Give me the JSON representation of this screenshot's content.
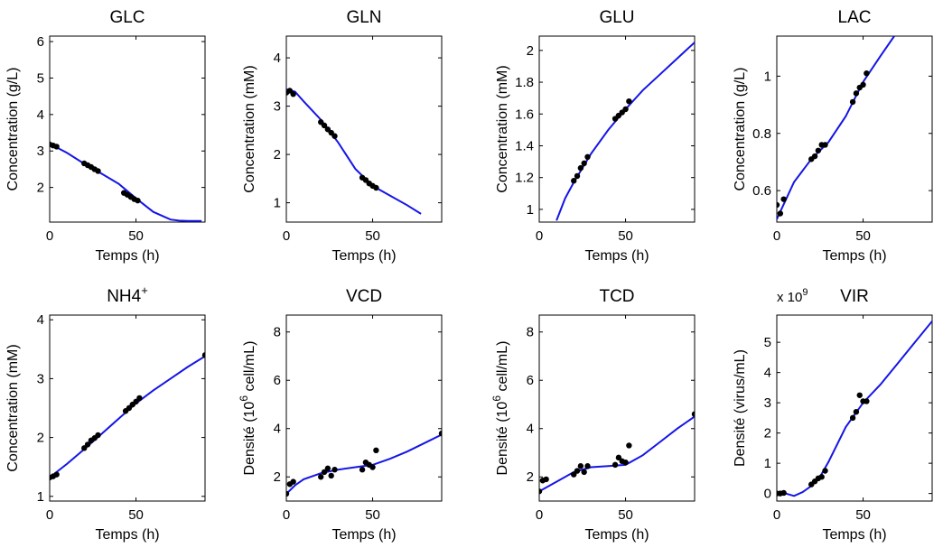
{
  "chart_data": [
    {
      "type": "scatter",
      "title": "GLC",
      "xlabel": "Temps (h)",
      "ylabel": "Concentration (g/L)",
      "xlim": [
        0,
        90
      ],
      "ylim": [
        1.05,
        6.15
      ],
      "xticks": [
        0,
        50
      ],
      "yticks": [
        2,
        3,
        4,
        5,
        6
      ],
      "series": [
        {
          "kind": "points",
          "x": [
            0,
            2,
            4,
            20,
            22,
            24,
            26,
            28,
            43,
            45,
            47,
            49,
            51
          ],
          "y": [
            3.18,
            3.15,
            3.12,
            2.66,
            2.61,
            2.56,
            2.5,
            2.45,
            1.85,
            1.8,
            1.74,
            1.68,
            1.64
          ]
        },
        {
          "kind": "fit",
          "x": [
            0,
            10,
            20,
            30,
            40,
            50,
            60,
            70,
            75,
            80,
            88
          ],
          "y": [
            3.2,
            2.95,
            2.65,
            2.38,
            2.1,
            1.7,
            1.33,
            1.12,
            1.09,
            1.08,
            1.08
          ]
        }
      ]
    },
    {
      "type": "scatter",
      "title": "GLN",
      "xlabel": "Temps (h)",
      "ylabel": "Concentration (mM)",
      "xlim": [
        0,
        90
      ],
      "ylim": [
        0.6,
        4.45
      ],
      "xticks": [
        0,
        50
      ],
      "yticks": [
        1,
        2,
        3,
        4
      ],
      "series": [
        {
          "kind": "points",
          "x": [
            0,
            2,
            4,
            20,
            22,
            24,
            26,
            28,
            44,
            46,
            48,
            50,
            52
          ],
          "y": [
            3.28,
            3.32,
            3.25,
            2.67,
            2.6,
            2.52,
            2.45,
            2.38,
            1.52,
            1.47,
            1.4,
            1.35,
            1.31
          ]
        },
        {
          "kind": "fit",
          "x": [
            0,
            5,
            10,
            20,
            30,
            40,
            50,
            60,
            70,
            78
          ],
          "y": [
            3.35,
            3.3,
            3.1,
            2.72,
            2.25,
            1.7,
            1.35,
            1.15,
            0.95,
            0.77
          ]
        }
      ]
    },
    {
      "type": "scatter",
      "title": "GLU",
      "xlabel": "Temps (h)",
      "ylabel": "Concentration (mM)",
      "xlim": [
        0,
        90
      ],
      "ylim": [
        0.92,
        2.09
      ],
      "xticks": [
        0,
        50
      ],
      "yticks": [
        1,
        1.2,
        1.4,
        1.6,
        1.8,
        2
      ],
      "series": [
        {
          "kind": "points",
          "x": [
            20,
            22,
            24,
            26,
            28,
            44,
            46,
            48,
            50,
            52
          ],
          "y": [
            1.18,
            1.21,
            1.26,
            1.29,
            1.33,
            1.57,
            1.59,
            1.61,
            1.63,
            1.68
          ]
        },
        {
          "kind": "fit",
          "x": [
            10,
            15,
            20,
            30,
            40,
            50,
            60,
            70,
            80,
            90
          ],
          "y": [
            0.93,
            1.07,
            1.17,
            1.35,
            1.5,
            1.63,
            1.75,
            1.85,
            1.95,
            2.05
          ]
        }
      ]
    },
    {
      "type": "scatter",
      "title": "LAC",
      "xlabel": "Temps (h)",
      "ylabel": "Concentration (g/L)",
      "xlim": [
        0,
        90
      ],
      "ylim": [
        0.49,
        1.14
      ],
      "xticks": [
        0,
        50
      ],
      "yticks": [
        0.6,
        0.8,
        1
      ],
      "series": [
        {
          "kind": "points",
          "x": [
            0,
            2,
            4,
            20,
            22,
            24,
            26,
            28,
            44,
            46,
            48,
            50,
            52
          ],
          "y": [
            0.55,
            0.52,
            0.57,
            0.71,
            0.72,
            0.74,
            0.76,
            0.76,
            0.91,
            0.94,
            0.96,
            0.97,
            1.01
          ]
        },
        {
          "kind": "fit",
          "x": [
            0,
            10,
            20,
            30,
            40,
            50,
            60,
            68
          ],
          "y": [
            0.5,
            0.63,
            0.71,
            0.77,
            0.86,
            0.98,
            1.07,
            1.14
          ]
        }
      ]
    },
    {
      "type": "scatter",
      "title": "NH4",
      "title_sup": "+",
      "xlabel": "Temps (h)",
      "ylabel": "Concentration (mM)",
      "xlim": [
        0,
        90
      ],
      "ylim": [
        0.92,
        4.08
      ],
      "xticks": [
        0,
        50
      ],
      "yticks": [
        1,
        2,
        3,
        4
      ],
      "series": [
        {
          "kind": "points",
          "x": [
            0,
            2,
            4,
            20,
            22,
            24,
            26,
            28,
            44,
            46,
            48,
            50,
            52,
            90
          ],
          "y": [
            1.32,
            1.34,
            1.37,
            1.82,
            1.88,
            1.95,
            1.99,
            2.04,
            2.45,
            2.5,
            2.56,
            2.61,
            2.67,
            3.4
          ]
        },
        {
          "kind": "fit",
          "x": [
            0,
            10,
            20,
            30,
            40,
            50,
            60,
            70,
            80,
            90
          ],
          "y": [
            1.32,
            1.55,
            1.8,
            2.06,
            2.32,
            2.58,
            2.8,
            3.0,
            3.2,
            3.38
          ]
        }
      ]
    },
    {
      "type": "scatter",
      "title": "VCD",
      "xlabel": "Temps (h)",
      "ylabel": "Densité (10",
      "ylabel_sup": "6",
      "ylabel_tail": " cell/mL)",
      "xlim": [
        0,
        90
      ],
      "ylim": [
        1,
        8.7
      ],
      "xticks": [
        0,
        50
      ],
      "yticks": [
        2,
        4,
        6,
        8
      ],
      "series": [
        {
          "kind": "points",
          "x": [
            0,
            2,
            4,
            20,
            22,
            24,
            26,
            28,
            44,
            46,
            48,
            50,
            52,
            90
          ],
          "y": [
            1.3,
            1.7,
            1.8,
            2.0,
            2.2,
            2.35,
            2.05,
            2.3,
            2.3,
            2.6,
            2.5,
            2.4,
            3.1,
            3.8
          ]
        },
        {
          "kind": "fit",
          "x": [
            0,
            5,
            10,
            20,
            30,
            40,
            50,
            60,
            70,
            80,
            90
          ],
          "y": [
            1.3,
            1.65,
            1.9,
            2.15,
            2.3,
            2.4,
            2.5,
            2.75,
            3.05,
            3.4,
            3.75
          ]
        }
      ]
    },
    {
      "type": "scatter",
      "title": "TCD",
      "xlabel": "Temps (h)",
      "ylabel": "Densité (10",
      "ylabel_sup": "6",
      "ylabel_tail": " cell/mL)",
      "xlim": [
        0,
        90
      ],
      "ylim": [
        1,
        8.7
      ],
      "xticks": [
        0,
        50
      ],
      "yticks": [
        2,
        4,
        6,
        8
      ],
      "series": [
        {
          "kind": "points",
          "x": [
            0,
            2,
            4,
            20,
            22,
            24,
            26,
            28,
            44,
            46,
            48,
            50,
            52,
            90
          ],
          "y": [
            1.4,
            1.85,
            1.9,
            2.1,
            2.25,
            2.45,
            2.2,
            2.45,
            2.5,
            2.8,
            2.65,
            2.6,
            3.3,
            4.6
          ]
        },
        {
          "kind": "fit",
          "x": [
            0,
            10,
            20,
            30,
            40,
            50,
            60,
            70,
            80,
            90
          ],
          "y": [
            1.4,
            1.8,
            2.2,
            2.4,
            2.45,
            2.5,
            2.9,
            3.45,
            4.0,
            4.5
          ]
        }
      ]
    },
    {
      "type": "scatter",
      "title": "VIR",
      "scale_label": "x 10",
      "scale_sup": "9",
      "xlabel": "Temps (h)",
      "ylabel": "Densité (virus/mL)",
      "xlim": [
        0,
        90
      ],
      "ylim": [
        -0.25,
        5.9
      ],
      "xticks": [
        0,
        50
      ],
      "yticks": [
        0,
        1,
        2,
        3,
        4,
        5
      ],
      "series": [
        {
          "kind": "points",
          "x": [
            0,
            2,
            4,
            20,
            22,
            24,
            26,
            28,
            44,
            46,
            48,
            50,
            52
          ],
          "y": [
            0,
            0,
            0.02,
            0.3,
            0.4,
            0.5,
            0.55,
            0.75,
            2.5,
            2.7,
            3.25,
            3.05,
            3.05
          ]
        },
        {
          "kind": "fit",
          "x": [
            0,
            5,
            10,
            15,
            20,
            25,
            30,
            40,
            50,
            60,
            70,
            80,
            90
          ],
          "y": [
            0.02,
            0,
            -0.08,
            0.05,
            0.25,
            0.55,
            1.05,
            2.2,
            3.0,
            3.6,
            4.3,
            5.0,
            5.7
          ]
        }
      ]
    }
  ]
}
